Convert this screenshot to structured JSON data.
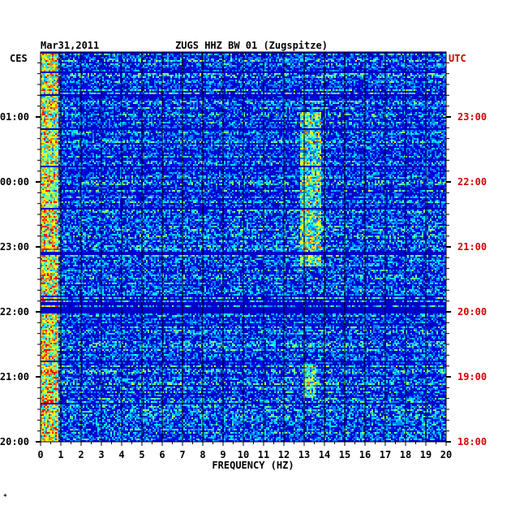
{
  "header": {
    "date": "Mar31,2011",
    "station": "ZUGS HHZ BW 01 (Zugspitze)",
    "left_zone": "CES",
    "right_zone": "UTC"
  },
  "footer": {
    "mark": "*"
  },
  "colors": {
    "background_blue": "#0000c8",
    "right_axis_text": "#d40000",
    "grid": "#000000"
  },
  "chart_data": {
    "type": "heatmap",
    "title": "ZUGS HHZ BW 01 (Zugspitze)",
    "xlabel": "FREQUENCY (HZ)",
    "xlim": [
      0,
      20
    ],
    "x_ticks": [
      "0",
      "1",
      "2",
      "3",
      "4",
      "5",
      "6",
      "7",
      "8",
      "9",
      "10",
      "11",
      "12",
      "13",
      "14",
      "15",
      "16",
      "17",
      "18",
      "19",
      "20"
    ],
    "left_time_ticks": [
      "01:00",
      "00:00",
      "23:00",
      "22:00",
      "21:00",
      "20:00"
    ],
    "right_time_ticks": [
      "23:00",
      "22:00",
      "21:00",
      "20:00",
      "19:00",
      "18:00"
    ],
    "hours_shown": 6,
    "colormap": [
      "#0000a0",
      "#0010ff",
      "#0080ff",
      "#00e0ff",
      "#80ff80",
      "#ffff00",
      "#ff8000",
      "#ff0000"
    ],
    "energy_bands": [
      {
        "from_hz": 0.0,
        "to_hz": 0.8,
        "level": "high"
      },
      {
        "from_hz": 12.8,
        "to_hz": 13.8,
        "level": "medium",
        "active_hours_from_top": [
          0.9,
          3.3
        ]
      },
      {
        "from_hz": 12.9,
        "to_hz": 13.6,
        "level": "medium",
        "active_hours_from_top": [
          4.8,
          5.3
        ]
      }
    ],
    "quiet_hours_from_top": [
      3.8,
      4.0
    ],
    "grid": true
  }
}
